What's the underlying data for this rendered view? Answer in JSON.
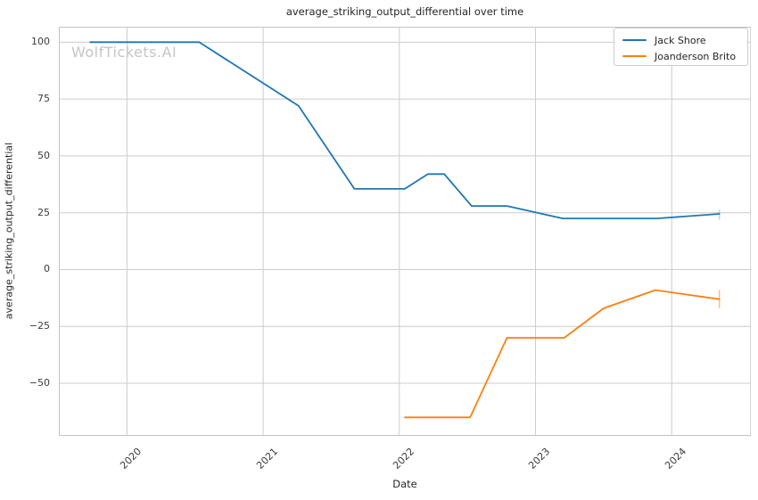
{
  "title": "average_striking_output_differential over time",
  "watermark": "WolfTickets.AI",
  "colors": {
    "background": "#ffffff",
    "grid": "#cccccc",
    "spine": "#c4c4c4",
    "title_text": "#262626",
    "tick_text": "#3b3b3b",
    "watermark_text": "#c5c5c5",
    "series_blue": "#1f77b4",
    "series_orange": "#ff7f0e"
  },
  "chart_data": {
    "type": "line",
    "title": "average_striking_output_differential over time",
    "xlabel": "Date",
    "ylabel": "average_striking_output_differential",
    "grid": true,
    "legend_position": "upper right",
    "axes": {
      "xlim_decimal_years": [
        2019.5,
        2024.583
      ],
      "ylim": [
        -73.1,
        106.8
      ],
      "x_ticks": [
        {
          "year": 2020,
          "label": "2020"
        },
        {
          "year": 2021,
          "label": "2021"
        },
        {
          "year": 2022,
          "label": "2022"
        },
        {
          "year": 2023,
          "label": "2023"
        },
        {
          "year": 2024,
          "label": "2024"
        }
      ],
      "y_ticks": [
        {
          "value": 100,
          "label": "100"
        },
        {
          "value": 75,
          "label": "75"
        },
        {
          "value": 50,
          "label": "50"
        },
        {
          "value": 25,
          "label": "25"
        },
        {
          "value": 0,
          "label": "0"
        },
        {
          "value": -25,
          "label": "−25"
        },
        {
          "value": -50,
          "label": "−50"
        }
      ]
    },
    "series": [
      {
        "name": "Jack Shore",
        "color": "#1f77b4",
        "points": [
          {
            "date": "2019-09",
            "x": 2019.73,
            "y": 100
          },
          {
            "date": "2020-07",
            "x": 2020.53,
            "y": 100
          },
          {
            "date": "2021-04",
            "x": 2021.26,
            "y": 72
          },
          {
            "date": "2021-09",
            "x": 2021.67,
            "y": 35.5
          },
          {
            "date": "2022-01",
            "x": 2022.04,
            "y": 35.5
          },
          {
            "date": "2022-03",
            "x": 2022.21,
            "y": 42
          },
          {
            "date": "2022-05",
            "x": 2022.33,
            "y": 42
          },
          {
            "date": "2022-07",
            "x": 2022.53,
            "y": 28
          },
          {
            "date": "2022-10",
            "x": 2022.79,
            "y": 28
          },
          {
            "date": "2023-03",
            "x": 2023.2,
            "y": 22.5
          },
          {
            "date": "2023-11",
            "x": 2023.89,
            "y": 22.5
          },
          {
            "date": "2024-05",
            "x": 2024.35,
            "y": 24.5
          }
        ],
        "end_error_bar": {
          "x": 2024.35,
          "y_low": 22.0,
          "y_high": 26.3,
          "opacity": 0.3
        }
      },
      {
        "name": "Joanderson Brito",
        "color": "#ff7f0e",
        "points": [
          {
            "date": "2022-01",
            "x": 2022.04,
            "y": -65
          },
          {
            "date": "2022-07",
            "x": 2022.52,
            "y": -65
          },
          {
            "date": "2022-10",
            "x": 2022.79,
            "y": -30
          },
          {
            "date": "2023-03",
            "x": 2023.21,
            "y": -30
          },
          {
            "date": "2023-07",
            "x": 2023.5,
            "y": -17
          },
          {
            "date": "2023-11",
            "x": 2023.88,
            "y": -9
          },
          {
            "date": "2024-05",
            "x": 2024.35,
            "y": -13
          }
        ],
        "end_error_bar": {
          "x": 2024.35,
          "y_low": -17.0,
          "y_high": -8.9,
          "opacity": 0.5
        }
      }
    ]
  }
}
